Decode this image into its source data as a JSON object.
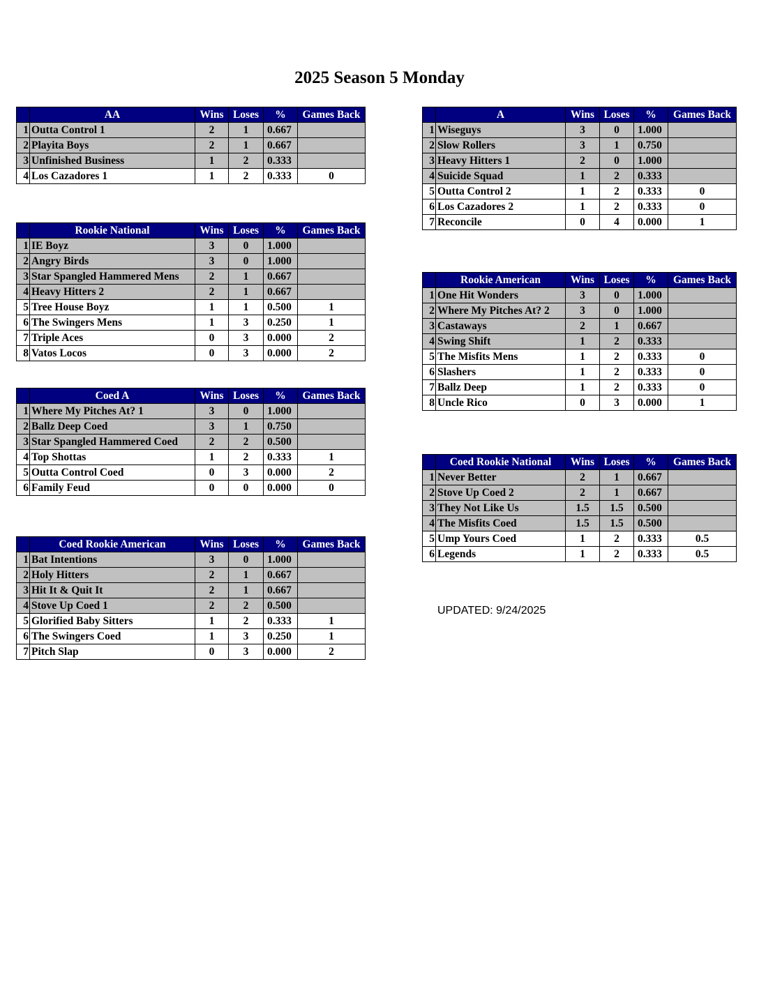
{
  "title": "2025 Season 5 Monday",
  "updated": "UPDATED: 9/24/2025",
  "colors": {
    "header_bg": "#000080",
    "header_text": "#ffffff",
    "shaded_row": "#c0c0c0"
  },
  "columns": {
    "wins": "Wins",
    "loses": "Loses",
    "pct": "%",
    "gb": "Games Back"
  },
  "tables": [
    {
      "division": "AA",
      "rows": [
        {
          "rank": "1",
          "team": "Outta Control 1",
          "wins": "2",
          "loses": "1",
          "pct": "0.667",
          "gb": ""
        },
        {
          "rank": "2",
          "team": "Playita Boys",
          "wins": "2",
          "loses": "1",
          "pct": "0.667",
          "gb": ""
        },
        {
          "rank": "3",
          "team": "Unfinished Business",
          "wins": "1",
          "loses": "2",
          "pct": "0.333",
          "gb": ""
        },
        {
          "rank": "4",
          "team": "Los Cazadores 1",
          "wins": "1",
          "loses": "2",
          "pct": "0.333",
          "gb": "0"
        }
      ]
    },
    {
      "division": "Rookie National",
      "rows": [
        {
          "rank": "1",
          "team": "IE Boyz",
          "wins": "3",
          "loses": "0",
          "pct": "1.000",
          "gb": ""
        },
        {
          "rank": "2",
          "team": "Angry Birds",
          "wins": "3",
          "loses": "0",
          "pct": "1.000",
          "gb": ""
        },
        {
          "rank": "3",
          "team": "Star Spangled Hammered Mens",
          "wins": "2",
          "loses": "1",
          "pct": "0.667",
          "gb": ""
        },
        {
          "rank": "4",
          "team": "Heavy Hitters 2",
          "wins": "2",
          "loses": "1",
          "pct": "0.667",
          "gb": ""
        },
        {
          "rank": "5",
          "team": "Tree House Boyz",
          "wins": "1",
          "loses": "1",
          "pct": "0.500",
          "gb": "1"
        },
        {
          "rank": "6",
          "team": "The Swingers Mens",
          "wins": "1",
          "loses": "3",
          "pct": "0.250",
          "gb": "1"
        },
        {
          "rank": "7",
          "team": "Triple Aces",
          "wins": "0",
          "loses": "3",
          "pct": "0.000",
          "gb": "2"
        },
        {
          "rank": "8",
          "team": "Vatos Locos",
          "wins": "0",
          "loses": "3",
          "pct": "0.000",
          "gb": "2"
        }
      ]
    },
    {
      "division": "Coed A",
      "rows": [
        {
          "rank": "1",
          "team": "Where My Pitches At? 1",
          "wins": "3",
          "loses": "0",
          "pct": "1.000",
          "gb": ""
        },
        {
          "rank": "2",
          "team": "Ballz Deep Coed",
          "wins": "3",
          "loses": "1",
          "pct": "0.750",
          "gb": ""
        },
        {
          "rank": "3",
          "team": "Star Spangled Hammered Coed",
          "wins": "2",
          "loses": "2",
          "pct": "0.500",
          "gb": ""
        },
        {
          "rank": "4",
          "team": "Top Shottas",
          "wins": "1",
          "loses": "2",
          "pct": "0.333",
          "gb": "1"
        },
        {
          "rank": "5",
          "team": "Outta Control Coed",
          "wins": "0",
          "loses": "3",
          "pct": "0.000",
          "gb": "2"
        },
        {
          "rank": "6",
          "team": "Family Feud",
          "wins": "0",
          "loses": "0",
          "pct": "0.000",
          "gb": "0"
        }
      ]
    },
    {
      "division": "Coed Rookie American",
      "rows": [
        {
          "rank": "1",
          "team": "Bat Intentions",
          "wins": "3",
          "loses": "0",
          "pct": "1.000",
          "gb": ""
        },
        {
          "rank": "2",
          "team": "Holy Hitters",
          "wins": "2",
          "loses": "1",
          "pct": "0.667",
          "gb": ""
        },
        {
          "rank": "3",
          "team": "Hit It & Quit It",
          "wins": "2",
          "loses": "1",
          "pct": "0.667",
          "gb": ""
        },
        {
          "rank": "4",
          "team": "Stove Up Coed 1",
          "wins": "2",
          "loses": "2",
          "pct": "0.500",
          "gb": ""
        },
        {
          "rank": "5",
          "team": "Glorified Baby Sitters",
          "wins": "1",
          "loses": "2",
          "pct": "0.333",
          "gb": "1"
        },
        {
          "rank": "6",
          "team": "The Swingers Coed",
          "wins": "1",
          "loses": "3",
          "pct": "0.250",
          "gb": "1"
        },
        {
          "rank": "7",
          "team": "Pitch Slap",
          "wins": "0",
          "loses": "3",
          "pct": "0.000",
          "gb": "2"
        }
      ]
    },
    {
      "division": "A",
      "rows": [
        {
          "rank": "1",
          "team": "Wiseguys",
          "wins": "3",
          "loses": "0",
          "pct": "1.000",
          "gb": ""
        },
        {
          "rank": "2",
          "team": "Slow Rollers",
          "wins": "3",
          "loses": "1",
          "pct": "0.750",
          "gb": ""
        },
        {
          "rank": "3",
          "team": "Heavy Hitters 1",
          "wins": "2",
          "loses": "0",
          "pct": "1.000",
          "gb": ""
        },
        {
          "rank": "4",
          "team": "Suicide Squad",
          "wins": "1",
          "loses": "2",
          "pct": "0.333",
          "gb": ""
        },
        {
          "rank": "5",
          "team": "Outta Control 2",
          "wins": "1",
          "loses": "2",
          "pct": "0.333",
          "gb": "0"
        },
        {
          "rank": "6",
          "team": "Los Cazadores 2",
          "wins": "1",
          "loses": "2",
          "pct": "0.333",
          "gb": "0"
        },
        {
          "rank": "7",
          "team": "Reconcile",
          "wins": "0",
          "loses": "4",
          "pct": "0.000",
          "gb": "1"
        }
      ]
    },
    {
      "division": "Rookie American",
      "rows": [
        {
          "rank": "1",
          "team": "One Hit Wonders",
          "wins": "3",
          "loses": "0",
          "pct": "1.000",
          "gb": ""
        },
        {
          "rank": "2",
          "team": "Where My Pitches At? 2",
          "wins": "3",
          "loses": "0",
          "pct": "1.000",
          "gb": ""
        },
        {
          "rank": "3",
          "team": "Castaways",
          "wins": "2",
          "loses": "1",
          "pct": "0.667",
          "gb": ""
        },
        {
          "rank": "4",
          "team": "Swing Shift",
          "wins": "1",
          "loses": "2",
          "pct": "0.333",
          "gb": ""
        },
        {
          "rank": "5",
          "team": "The Misfits Mens",
          "wins": "1",
          "loses": "2",
          "pct": "0.333",
          "gb": "0"
        },
        {
          "rank": "6",
          "team": "Slashers",
          "wins": "1",
          "loses": "2",
          "pct": "0.333",
          "gb": "0"
        },
        {
          "rank": "7",
          "team": "Ballz Deep",
          "wins": "1",
          "loses": "2",
          "pct": "0.333",
          "gb": "0"
        },
        {
          "rank": "8",
          "team": "Uncle Rico",
          "wins": "0",
          "loses": "3",
          "pct": "0.000",
          "gb": "1"
        }
      ]
    },
    {
      "division": "Coed Rookie National",
      "rows": [
        {
          "rank": "1",
          "team": "Never Better",
          "wins": "2",
          "loses": "1",
          "pct": "0.667",
          "gb": ""
        },
        {
          "rank": "2",
          "team": "Stove Up Coed 2",
          "wins": "2",
          "loses": "1",
          "pct": "0.667",
          "gb": ""
        },
        {
          "rank": "3",
          "team": "They Not Like Us",
          "wins": "1.5",
          "loses": "1.5",
          "pct": "0.500",
          "gb": ""
        },
        {
          "rank": "4",
          "team": "The Misfits Coed",
          "wins": "1.5",
          "loses": "1.5",
          "pct": "0.500",
          "gb": ""
        },
        {
          "rank": "5",
          "team": "Ump Yours Coed",
          "wins": "1",
          "loses": "2",
          "pct": "0.333",
          "gb": "0.5"
        },
        {
          "rank": "6",
          "team": "Legends",
          "wins": "1",
          "loses": "2",
          "pct": "0.333",
          "gb": "0.5"
        }
      ]
    }
  ]
}
